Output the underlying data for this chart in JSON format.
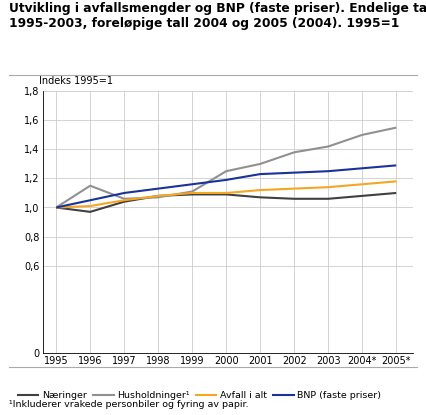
{
  "title": "Utvikling i avfallsmengder og BNP (faste priser). Endelige tall\n1995-2003, foreløpige tall 2004 og 2005 (2004). 1995=1",
  "ylabel": "Indeks 1995=1",
  "years": [
    1995,
    1996,
    1997,
    1998,
    1999,
    2000,
    2001,
    2002,
    2003,
    2004,
    2005
  ],
  "xtick_labels": [
    "1995",
    "1996",
    "1997",
    "1998",
    "1999",
    "2000",
    "2001",
    "2002",
    "2003",
    "2004*",
    "2005*"
  ],
  "series": {
    "Næringer": {
      "values": [
        1.0,
        0.97,
        1.04,
        1.08,
        1.09,
        1.09,
        1.07,
        1.06,
        1.06,
        1.08,
        1.1
      ],
      "color": "#404040",
      "linewidth": 1.5
    },
    "Husholdninger¹": {
      "values": [
        1.0,
        1.15,
        1.06,
        1.07,
        1.11,
        1.25,
        1.3,
        1.38,
        1.42,
        1.5,
        1.55
      ],
      "color": "#909090",
      "linewidth": 1.5
    },
    "Avfall i alt": {
      "values": [
        1.0,
        1.01,
        1.05,
        1.08,
        1.1,
        1.1,
        1.12,
        1.13,
        1.14,
        1.16,
        1.18
      ],
      "color": "#f5a623",
      "linewidth": 1.5
    },
    "BNP (faste priser)": {
      "values": [
        1.0,
        1.05,
        1.1,
        1.13,
        1.16,
        1.19,
        1.23,
        1.24,
        1.25,
        1.27,
        1.29
      ],
      "color": "#1a3399",
      "linewidth": 1.5
    }
  },
  "ylim": [
    0,
    1.8
  ],
  "yticks": [
    0,
    0.6,
    0.8,
    1.0,
    1.2,
    1.4,
    1.6,
    1.8
  ],
  "ytick_labels": [
    "0",
    "0,6",
    "0,8",
    "1,0",
    "1,2",
    "1,4",
    "1,6",
    "1,8"
  ],
  "footnote": "¹Inkluderer vrakede personbiler og fyring av papir.",
  "legend_entries": [
    "Næringer",
    "Husholdninger¹",
    "Avfall i alt",
    "BNP (faste priser)"
  ],
  "legend_colors": [
    "#404040",
    "#909090",
    "#f5a623",
    "#1a3399"
  ],
  "background_color": "#ffffff",
  "grid_color": "#cccccc"
}
